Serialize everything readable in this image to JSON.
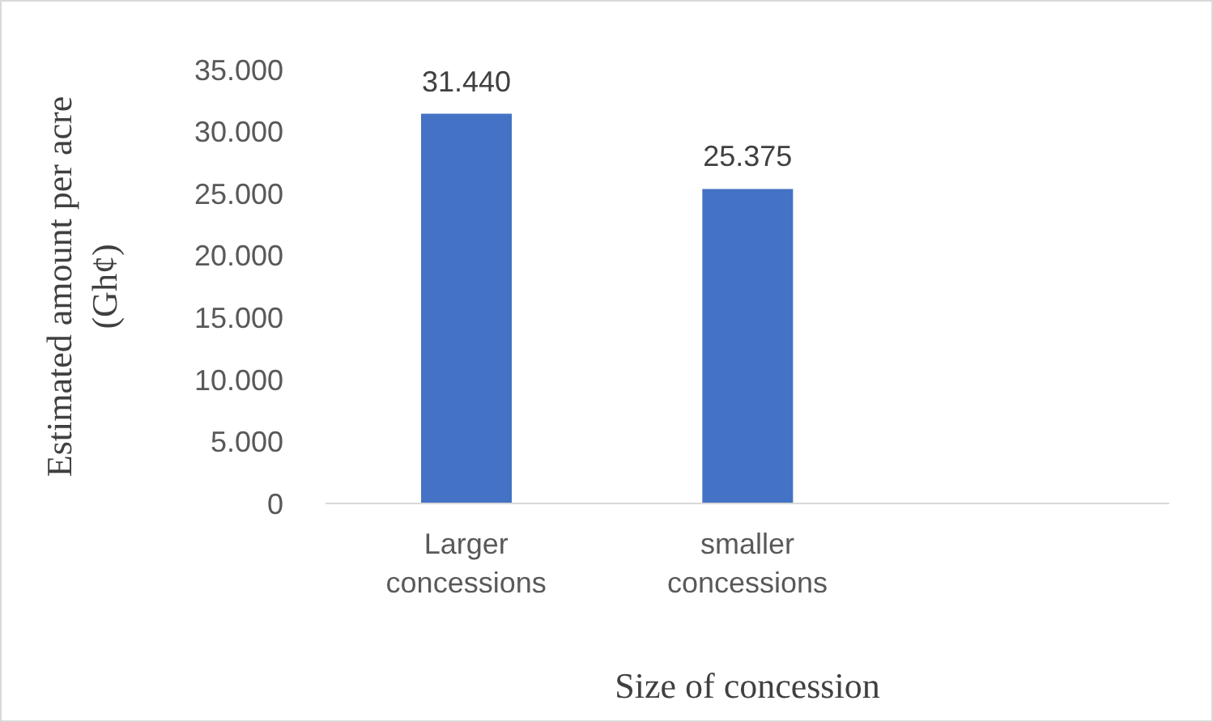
{
  "chart_data": {
    "type": "bar",
    "xlabel": "Size of concession",
    "ylabel": "Estimated amount per acre (Gh¢)",
    "categories": [
      "Larger concessions",
      "smaller concessions",
      null
    ],
    "values": [
      31440,
      25375,
      null
    ],
    "value_labels": [
      "31.440",
      "25.375",
      null
    ],
    "color": "#4472c4",
    "ylim": [
      0,
      35000
    ],
    "yticks": [
      0,
      {
        "value": 5000,
        "label": "5.000"
      },
      {
        "value": 10000,
        "label": "10.000"
      },
      {
        "value": 15000,
        "label": "15.000"
      },
      {
        "value": 20000,
        "label": "20.000"
      },
      {
        "value": 25000,
        "label": "25.000"
      },
      {
        "value": 30000,
        "label": "30.000"
      },
      {
        "value": 35000,
        "label": "35.000"
      }
    ],
    "grid": false,
    "legend": false
  }
}
